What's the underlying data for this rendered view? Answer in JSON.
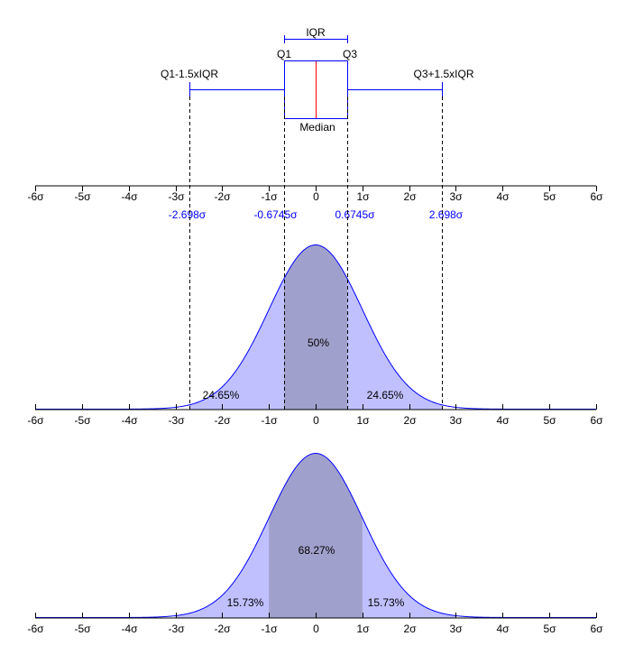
{
  "colors": {
    "axis": "#000000",
    "curve": "#0000ff",
    "fill_light": "#c0c0ff",
    "fill_dark": "#a0a0cc",
    "median": "#ff0000",
    "annotation": "#0000ff"
  },
  "axis_ticks": [
    "-6σ",
    "-5σ",
    "-4σ",
    "-3σ",
    "-2σ",
    "-1σ",
    "0",
    "1σ",
    "2σ",
    "3σ",
    "4σ",
    "5σ",
    "6σ"
  ],
  "boxplot": {
    "iqr_label": "IQR",
    "q1_label": "Q1",
    "q3_label": "Q3",
    "median_label": "Median",
    "lower_whisker_label": "Q1-1.5xIQR",
    "upper_whisker_label": "Q3+1.5xIQR",
    "q1": -0.6745,
    "q3": 0.6745,
    "median": 0,
    "lower_whisker": -2.698,
    "upper_whisker": 2.698,
    "marker_labels": [
      "-2.698σ",
      "-0.6745σ",
      "0.6745σ",
      "2.698σ"
    ]
  },
  "pdf_iqr": {
    "inner": [
      -0.6745,
      0.6745
    ],
    "outer": [
      -2.698,
      2.698
    ],
    "center_label": "50%",
    "left_label": "24.65%",
    "right_label": "24.65%"
  },
  "pdf_sigma": {
    "inner": [
      -1,
      1
    ],
    "outer": [
      -3,
      3
    ],
    "center_label": "68.27%",
    "left_label": "15.73%",
    "right_label": "15.73%"
  }
}
